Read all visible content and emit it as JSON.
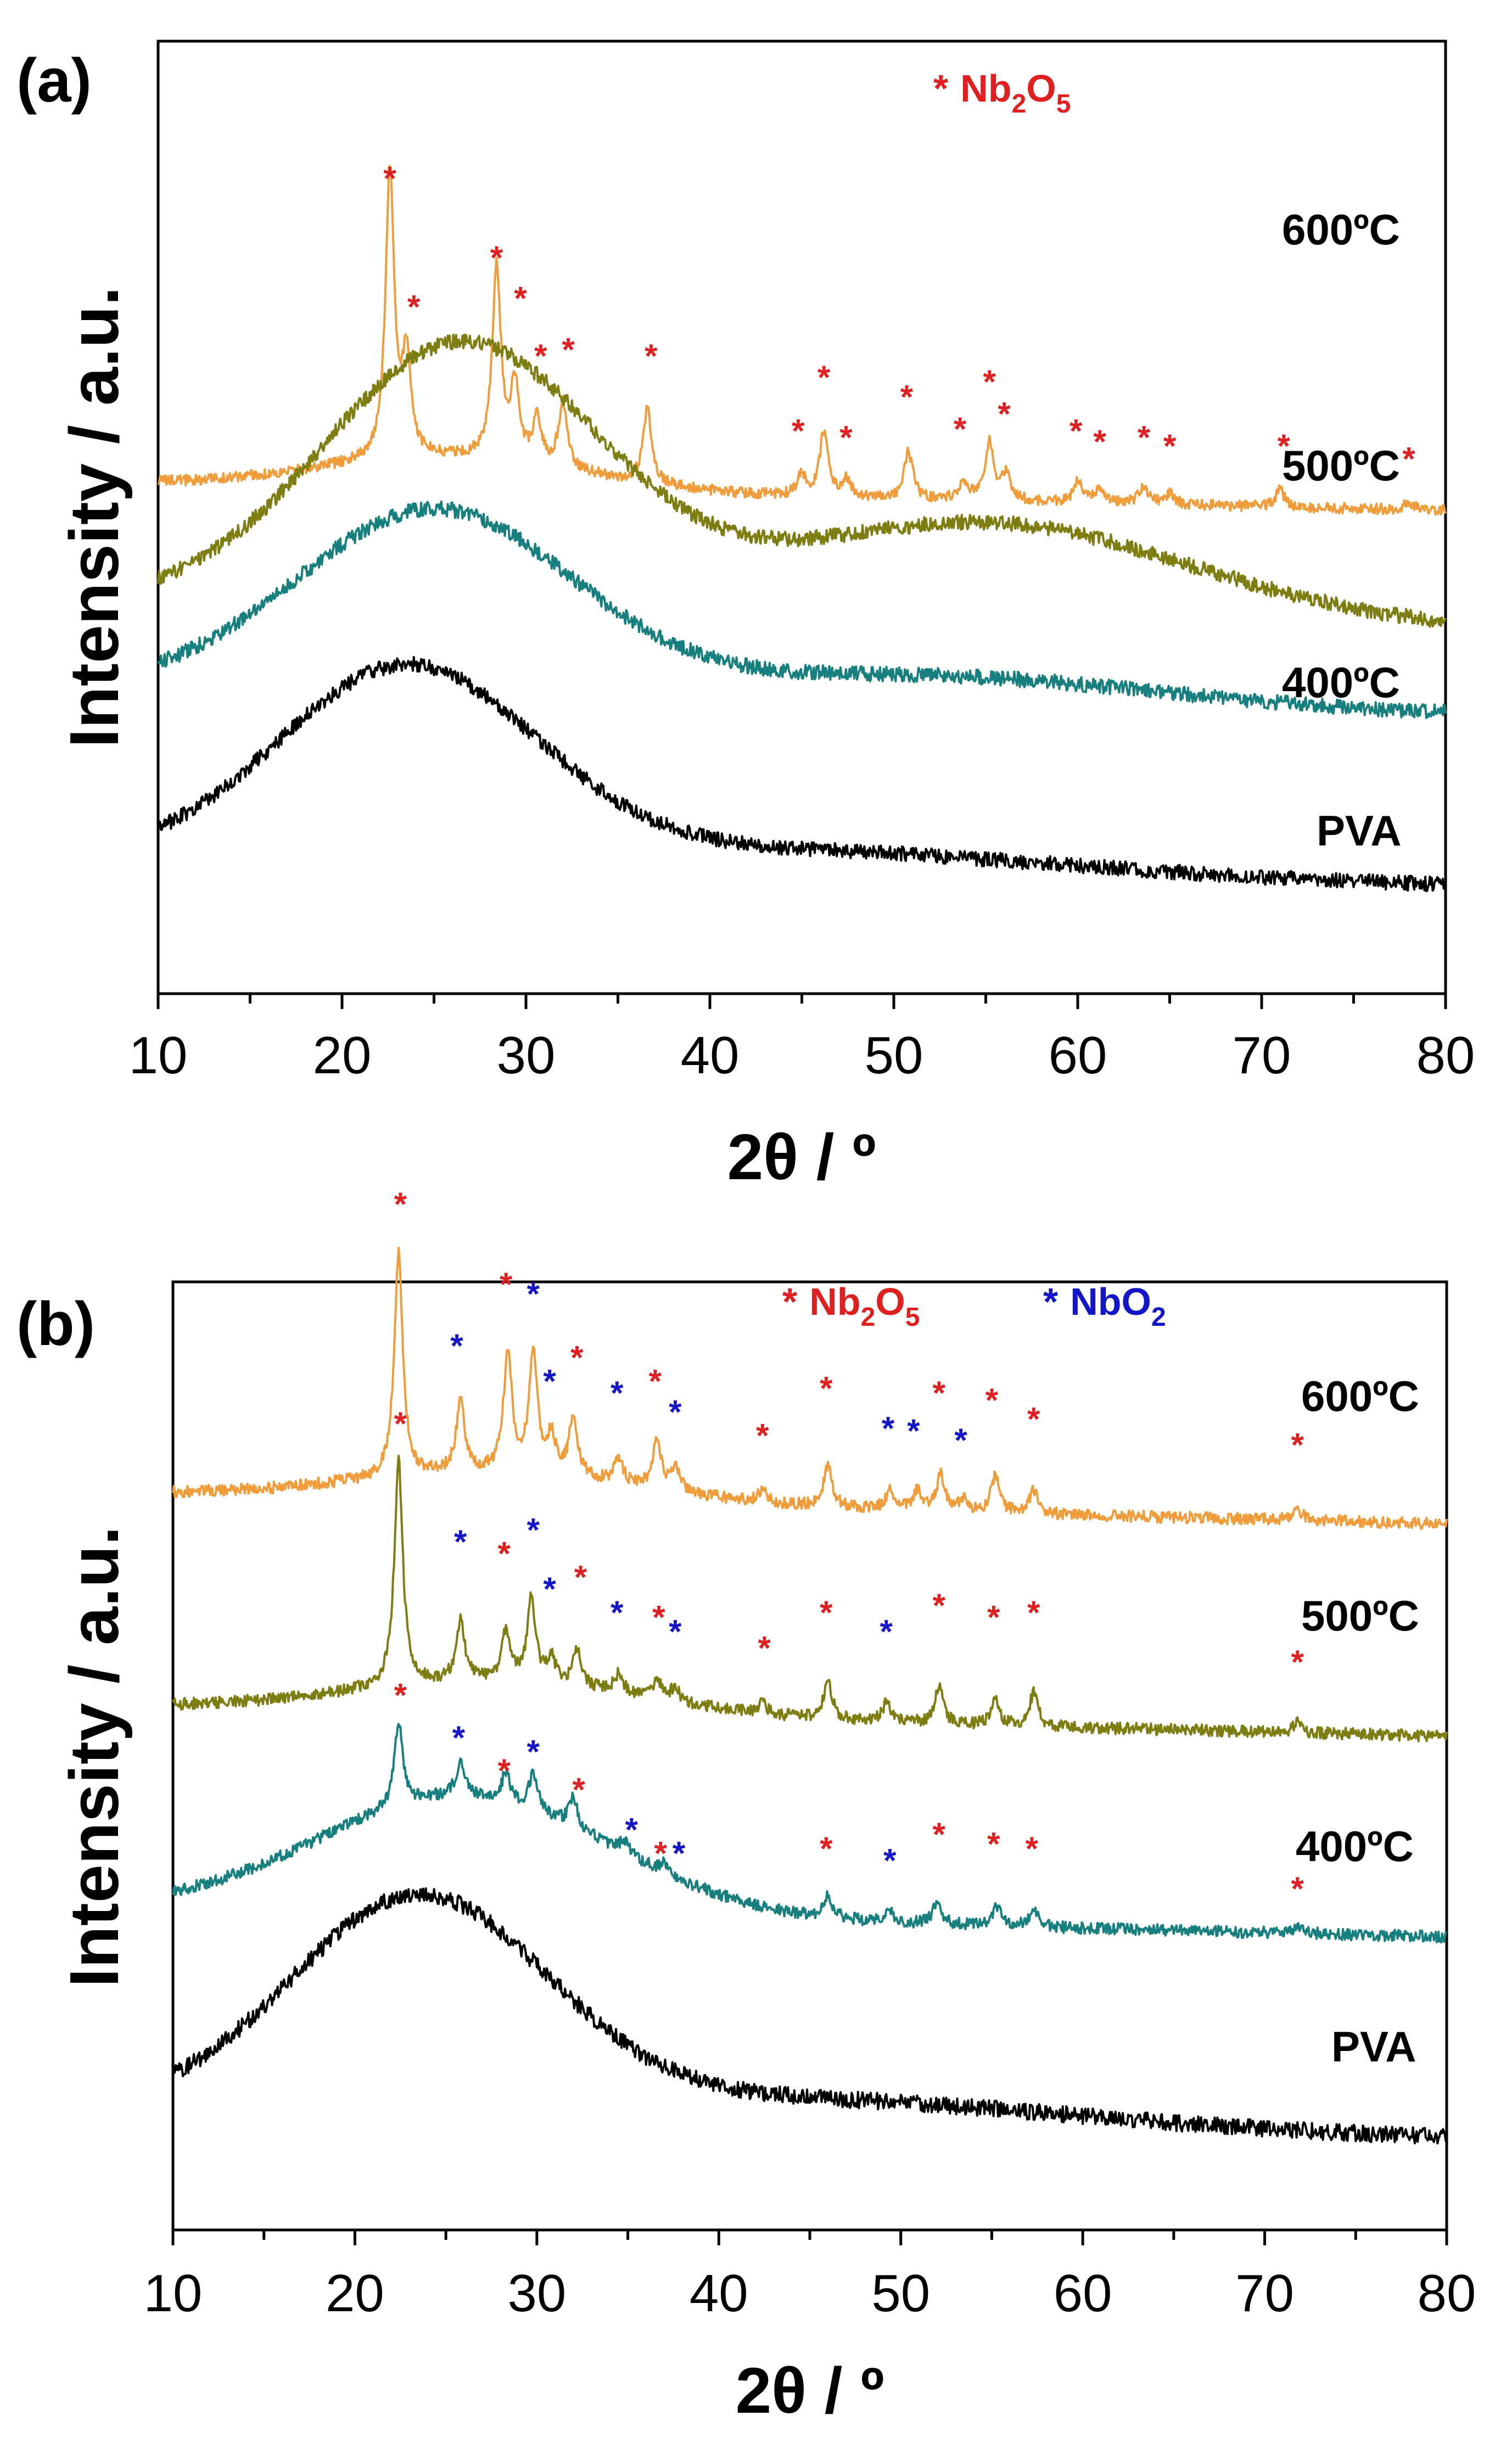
{
  "colors": {
    "PVA": "#000000",
    "400C": "#17807e",
    "500C": "#7e7d12",
    "600C": "#f09c3a",
    "nb2o5": "#e02020",
    "nbo2": "#1414c8"
  },
  "chart_data": [
    {
      "panel": "(a)",
      "type": "line",
      "xlabel": "2θ / º",
      "ylabel": "Intensity / a.u.",
      "xlim": [
        10,
        80
      ],
      "x_ticks": [
        "10",
        "20",
        "30",
        "40",
        "50",
        "60",
        "70",
        "80"
      ],
      "legend": [
        {
          "symbol": "*",
          "label_main": "Nb",
          "sub1": "2",
          "mid": "O",
          "sub2": "5",
          "color_key": "nb2o5"
        }
      ],
      "series": [
        {
          "name": "600ºC",
          "color_key": "600C",
          "baseline": 2.1,
          "shape": "crystalline",
          "hump": {
            "center": 26,
            "width": 7,
            "height": 0.15
          },
          "peaks": [
            {
              "x": 22.6,
              "h": 1.35
            },
            {
              "x": 23.5,
              "h": 0.45
            },
            {
              "x": 28.4,
              "h": 0.9
            },
            {
              "x": 29.4,
              "h": 0.35
            },
            {
              "x": 30.6,
              "h": 0.2
            },
            {
              "x": 32.0,
              "h": 0.3
            },
            {
              "x": 36.6,
              "h": 0.35
            },
            {
              "x": 45.0,
              "h": 0.1
            },
            {
              "x": 46.2,
              "h": 0.3
            },
            {
              "x": 47.4,
              "h": 0.08
            },
            {
              "x": 50.8,
              "h": 0.22
            },
            {
              "x": 53.8,
              "h": 0.08
            },
            {
              "x": 55.2,
              "h": 0.28
            },
            {
              "x": 56.1,
              "h": 0.12
            },
            {
              "x": 60.0,
              "h": 0.1
            },
            {
              "x": 61.2,
              "h": 0.07
            },
            {
              "x": 63.6,
              "h": 0.09
            },
            {
              "x": 65.0,
              "h": 0.05
            },
            {
              "x": 71.0,
              "h": 0.08
            },
            {
              "x": 78.0,
              "h": 0.04
            }
          ],
          "markers": [
            {
              "x": 22.6,
              "y": 3.55,
              "type": "nb2o5"
            },
            {
              "x": 23.9,
              "y": 2.95,
              "type": "nb2o5"
            },
            {
              "x": 28.4,
              "y": 3.18,
              "type": "nb2o5"
            },
            {
              "x": 29.7,
              "y": 2.99,
              "type": "nb2o5"
            },
            {
              "x": 30.8,
              "y": 2.72,
              "type": "nb2o5"
            },
            {
              "x": 32.3,
              "y": 2.75,
              "type": "nb2o5"
            },
            {
              "x": 36.8,
              "y": 2.72,
              "type": "nb2o5"
            },
            {
              "x": 44.8,
              "y": 2.37,
              "type": "nb2o5"
            },
            {
              "x": 46.2,
              "y": 2.62,
              "type": "nb2o5"
            },
            {
              "x": 47.4,
              "y": 2.34,
              "type": "nb2o5"
            },
            {
              "x": 50.7,
              "y": 2.53,
              "type": "nb2o5"
            },
            {
              "x": 53.6,
              "y": 2.38,
              "type": "nb2o5"
            },
            {
              "x": 55.2,
              "y": 2.6,
              "type": "nb2o5"
            },
            {
              "x": 56.0,
              "y": 2.45,
              "type": "nb2o5"
            },
            {
              "x": 59.9,
              "y": 2.37,
              "type": "nb2o5"
            },
            {
              "x": 61.2,
              "y": 2.32,
              "type": "nb2o5"
            },
            {
              "x": 63.6,
              "y": 2.34,
              "type": "nb2o5"
            },
            {
              "x": 65.0,
              "y": 2.3,
              "type": "nb2o5"
            },
            {
              "x": 71.2,
              "y": 2.3,
              "type": "nb2o5"
            },
            {
              "x": 78.0,
              "y": 2.24,
              "type": "nb2o5"
            }
          ]
        },
        {
          "name": "500ºC",
          "color_key": "500C",
          "baseline": 1.55,
          "shape": "amorphous2",
          "hump": {
            "center": 26.5,
            "width": 7.5,
            "height": 1.23
          },
          "hump2": {
            "center": 55,
            "width": 11,
            "height": 0.45
          },
          "peaks": [],
          "markers": []
        },
        {
          "name": "400ºC",
          "color_key": "400C",
          "baseline": 1.15,
          "shape": "amorphous2",
          "hump": {
            "center": 25,
            "width": 7.5,
            "height": 0.85
          },
          "hump2": {
            "center": 52,
            "width": 12,
            "height": 0.13
          },
          "peaks": [],
          "markers": []
        },
        {
          "name": "PVA",
          "color_key": "PVA",
          "baseline": 0.35,
          "shape": "amorphous",
          "hump": {
            "center": 23.5,
            "width": 7,
            "height": 0.9
          },
          "hump2": {
            "center": 45,
            "width": 14,
            "height": 0.1
          },
          "peaks": [],
          "markers": []
        }
      ]
    },
    {
      "panel": "(b)",
      "type": "line",
      "xlabel": "2θ / º",
      "ylabel": "Intensity / a.u.",
      "xlim": [
        10,
        80
      ],
      "x_ticks": [
        "10",
        "20",
        "30",
        "40",
        "50",
        "60",
        "70",
        "80"
      ],
      "legend": [
        {
          "symbol": "*",
          "label_main": "Nb",
          "sub1": "2",
          "mid": "O",
          "sub2": "5",
          "color_key": "nb2o5"
        },
        {
          "symbol": "*",
          "label_main": "NbO",
          "sub1": "2",
          "mid": "",
          "sub2": "",
          "color_key": "nbo2"
        }
      ],
      "series": [
        {
          "name": "600ºC",
          "color_key": "600C",
          "baseline": 2.95,
          "shape": "crystalline",
          "hump": {
            "center": 28,
            "width": 8,
            "height": 0.12
          },
          "peaks": [
            {
              "x": 22.4,
              "h": 0.95
            },
            {
              "x": 25.8,
              "h": 0.3
            },
            {
              "x": 28.4,
              "h": 0.5
            },
            {
              "x": 29.8,
              "h": 0.5
            },
            {
              "x": 30.8,
              "h": 0.15
            },
            {
              "x": 32.0,
              "h": 0.25
            },
            {
              "x": 34.5,
              "h": 0.1
            },
            {
              "x": 36.6,
              "h": 0.2
            },
            {
              "x": 37.6,
              "h": 0.1
            },
            {
              "x": 42.4,
              "h": 0.05
            },
            {
              "x": 46.0,
              "h": 0.18
            },
            {
              "x": 49.4,
              "h": 0.08
            },
            {
              "x": 50.9,
              "h": 0.08
            },
            {
              "x": 52.2,
              "h": 0.15
            },
            {
              "x": 53.4,
              "h": 0.05
            },
            {
              "x": 55.2,
              "h": 0.16
            },
            {
              "x": 57.3,
              "h": 0.1
            },
            {
              "x": 71.8,
              "h": 0.05
            }
          ],
          "markers": [
            {
              "x": 22.5,
              "y": 4.2,
              "type": "nb2o5"
            },
            {
              "x": 25.6,
              "y": 3.6,
              "type": "nbo2"
            },
            {
              "x": 28.3,
              "y": 3.86,
              "type": "nb2o5"
            },
            {
              "x": 29.8,
              "y": 3.82,
              "type": "nbo2"
            },
            {
              "x": 30.7,
              "y": 3.45,
              "type": "nbo2"
            },
            {
              "x": 32.2,
              "y": 3.55,
              "type": "nb2o5"
            },
            {
              "x": 34.4,
              "y": 3.4,
              "type": "nbo2"
            },
            {
              "x": 36.5,
              "y": 3.45,
              "type": "nb2o5"
            },
            {
              "x": 37.6,
              "y": 3.32,
              "type": "nbo2"
            },
            {
              "x": 42.4,
              "y": 3.22,
              "type": "nb2o5"
            },
            {
              "x": 45.9,
              "y": 3.42,
              "type": "nb2o5"
            },
            {
              "x": 49.3,
              "y": 3.25,
              "type": "nbo2"
            },
            {
              "x": 50.7,
              "y": 3.24,
              "type": "nbo2"
            },
            {
              "x": 52.1,
              "y": 3.4,
              "type": "nb2o5"
            },
            {
              "x": 53.3,
              "y": 3.2,
              "type": "nbo2"
            },
            {
              "x": 55.0,
              "y": 3.37,
              "type": "nb2o5"
            },
            {
              "x": 57.3,
              "y": 3.29,
              "type": "nb2o5"
            },
            {
              "x": 71.8,
              "y": 3.18,
              "type": "nb2o5"
            }
          ]
        },
        {
          "name": "500ºC",
          "color_key": "500C",
          "baseline": 2.05,
          "shape": "crystalline",
          "hump": {
            "center": 28,
            "width": 8,
            "height": 0.14
          },
          "peaks": [
            {
              "x": 22.4,
              "h": 0.95
            },
            {
              "x": 25.8,
              "h": 0.25
            },
            {
              "x": 28.3,
              "h": 0.2
            },
            {
              "x": 29.7,
              "h": 0.35
            },
            {
              "x": 30.8,
              "h": 0.1
            },
            {
              "x": 32.2,
              "h": 0.15
            },
            {
              "x": 34.5,
              "h": 0.08
            },
            {
              "x": 36.6,
              "h": 0.08
            },
            {
              "x": 37.6,
              "h": 0.06
            },
            {
              "x": 42.4,
              "h": 0.05
            },
            {
              "x": 46.0,
              "h": 0.16
            },
            {
              "x": 49.2,
              "h": 0.08
            },
            {
              "x": 52.1,
              "h": 0.16
            },
            {
              "x": 55.2,
              "h": 0.1
            },
            {
              "x": 57.3,
              "h": 0.14
            },
            {
              "x": 71.8,
              "h": 0.04
            }
          ],
          "markers": [
            {
              "x": 22.5,
              "y": 3.27,
              "type": "nb2o5"
            },
            {
              "x": 25.8,
              "y": 2.77,
              "type": "nbo2"
            },
            {
              "x": 28.2,
              "y": 2.72,
              "type": "nb2o5"
            },
            {
              "x": 29.8,
              "y": 2.82,
              "type": "nbo2"
            },
            {
              "x": 30.7,
              "y": 2.57,
              "type": "nbo2"
            },
            {
              "x": 32.4,
              "y": 2.62,
              "type": "nb2o5"
            },
            {
              "x": 34.4,
              "y": 2.47,
              "type": "nbo2"
            },
            {
              "x": 36.7,
              "y": 2.45,
              "type": "nb2o5"
            },
            {
              "x": 37.6,
              "y": 2.39,
              "type": "nbo2"
            },
            {
              "x": 42.5,
              "y": 2.32,
              "type": "nb2o5"
            },
            {
              "x": 45.9,
              "y": 2.47,
              "type": "nb2o5"
            },
            {
              "x": 49.2,
              "y": 2.39,
              "type": "nbo2"
            },
            {
              "x": 52.1,
              "y": 2.5,
              "type": "nb2o5"
            },
            {
              "x": 55.1,
              "y": 2.45,
              "type": "nb2o5"
            },
            {
              "x": 57.3,
              "y": 2.47,
              "type": "nb2o5"
            },
            {
              "x": 71.8,
              "y": 2.26,
              "type": "nb2o5"
            }
          ]
        },
        {
          "name": "400ºC",
          "color_key": "400C",
          "baseline": 1.2,
          "shape": "crystalline",
          "hump": {
            "center": 26,
            "width": 8,
            "height": 0.5
          },
          "peaks": [
            {
              "x": 22.4,
              "h": 0.35
            },
            {
              "x": 25.8,
              "h": 0.15
            },
            {
              "x": 28.3,
              "h": 0.12
            },
            {
              "x": 29.8,
              "h": 0.15
            },
            {
              "x": 32.0,
              "h": 0.12
            },
            {
              "x": 34.8,
              "h": 0.06
            },
            {
              "x": 37.0,
              "h": 0.04
            },
            {
              "x": 46.0,
              "h": 0.1
            },
            {
              "x": 49.4,
              "h": 0.04
            },
            {
              "x": 52.0,
              "h": 0.1
            },
            {
              "x": 55.3,
              "h": 0.08
            },
            {
              "x": 57.3,
              "h": 0.08
            },
            {
              "x": 71.8,
              "h": 0.03
            }
          ],
          "markers": [
            {
              "x": 22.5,
              "y": 2.12,
              "type": "nb2o5"
            },
            {
              "x": 25.7,
              "y": 1.94,
              "type": "nbo2"
            },
            {
              "x": 28.2,
              "y": 1.8,
              "type": "nb2o5"
            },
            {
              "x": 29.8,
              "y": 1.88,
              "type": "nbo2"
            },
            {
              "x": 32.3,
              "y": 1.72,
              "type": "nb2o5"
            },
            {
              "x": 35.2,
              "y": 1.55,
              "type": "nbo2"
            },
            {
              "x": 36.8,
              "y": 1.45,
              "type": "nb2o5"
            },
            {
              "x": 37.8,
              "y": 1.45,
              "type": "nbo2"
            },
            {
              "x": 45.9,
              "y": 1.47,
              "type": "nb2o5"
            },
            {
              "x": 49.4,
              "y": 1.42,
              "type": "nbo2"
            },
            {
              "x": 52.1,
              "y": 1.53,
              "type": "nb2o5"
            },
            {
              "x": 55.1,
              "y": 1.49,
              "type": "nb2o5"
            },
            {
              "x": 57.2,
              "y": 1.47,
              "type": "nb2o5"
            },
            {
              "x": 71.8,
              "y": 1.3,
              "type": "nb2o5"
            }
          ]
        },
        {
          "name": "PVA",
          "color_key": "PVA",
          "baseline": 0.35,
          "shape": "amorphous",
          "hump": {
            "center": 23.5,
            "width": 7,
            "height": 0.9
          },
          "hump2": {
            "center": 45,
            "width": 14,
            "height": 0.1
          },
          "peaks": [],
          "markers": []
        }
      ]
    }
  ]
}
